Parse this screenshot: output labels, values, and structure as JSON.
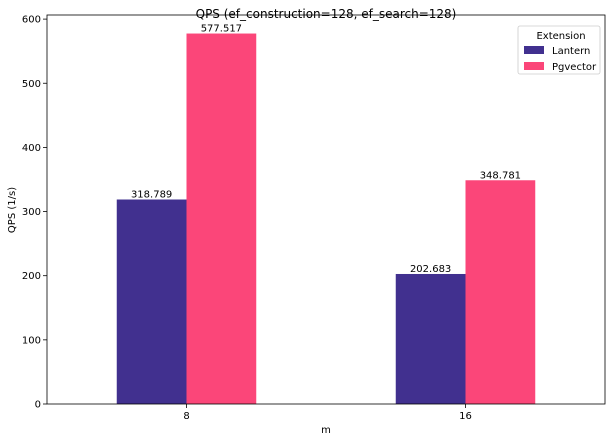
{
  "chart_data": {
    "type": "bar",
    "title": "QPS (ef_construction=128, ef_search=128)",
    "xlabel": "m",
    "ylabel": "QPS (1/s)",
    "categories": [
      "8",
      "16"
    ],
    "series": [
      {
        "name": "Lantern",
        "values": [
          318.789,
          202.683
        ],
        "color": "#41308f"
      },
      {
        "name": "Pgvector",
        "values": [
          577.517,
          348.781
        ],
        "color": "#fb4679"
      }
    ],
    "data_labels": [
      [
        "318.789",
        "202.683"
      ],
      [
        "577.517",
        "348.781"
      ]
    ],
    "ylim": [
      0,
      606.4
    ],
    "yticks": [
      0,
      100,
      200,
      300,
      400,
      500,
      600
    ],
    "grid": false,
    "legend": {
      "title": "Extension",
      "placement": "top-right"
    }
  }
}
